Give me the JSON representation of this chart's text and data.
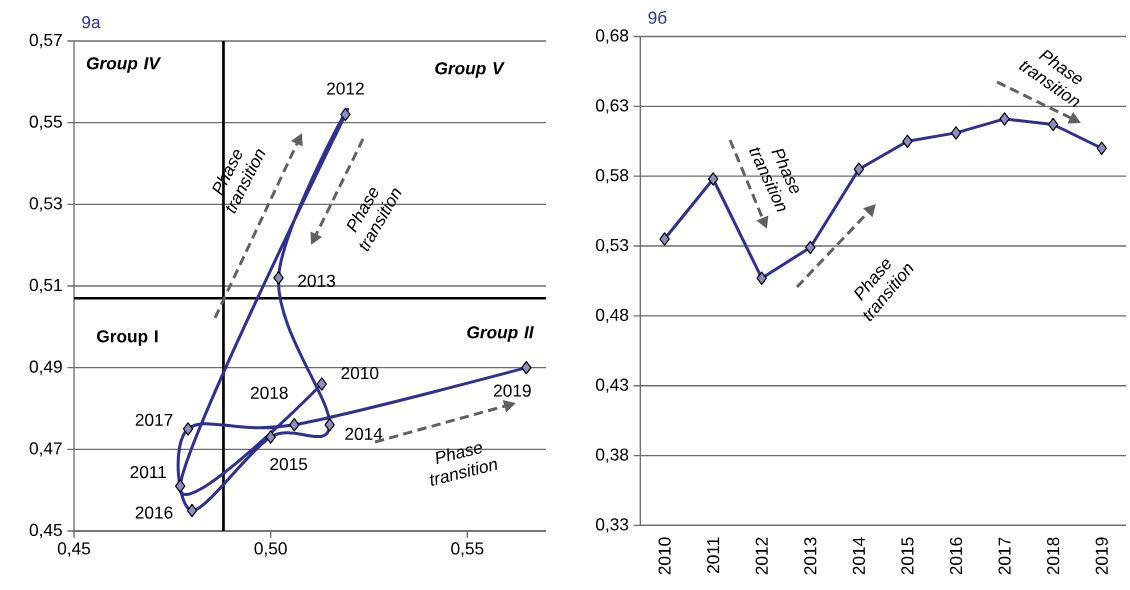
{
  "chart_data": [
    {
      "type": "line",
      "title": "9a",
      "x": [
        0.513,
        0.477,
        0.519,
        0.502,
        0.515,
        0.5,
        0.48,
        0.479,
        0.506,
        0.565
      ],
      "series": [
        {
          "color": "#2e3192",
          "values": [
            0.486,
            0.461,
            0.552,
            0.512,
            0.476,
            0.473,
            0.455,
            0.475,
            0.476,
            0.49
          ]
        }
      ],
      "xlim": [
        0.45,
        0.57
      ],
      "ylim": [
        0.45,
        0.57
      ],
      "xticks": [
        {
          "value": 0.45,
          "label": "0,45"
        },
        {
          "value": 0.5,
          "label": "0,50"
        },
        {
          "value": 0.55,
          "label": "0,55"
        }
      ],
      "yticks": [
        {
          "value": 0.45,
          "label": "0,45"
        },
        {
          "value": 0.47,
          "label": "0,47"
        },
        {
          "value": 0.49,
          "label": "0,49"
        },
        {
          "value": 0.51,
          "label": "0,51"
        },
        {
          "value": 0.53,
          "label": "0,53"
        },
        {
          "value": 0.55,
          "label": "0,55"
        },
        {
          "value": 0.57,
          "label": "0,57"
        }
      ],
      "grid": "y",
      "marker": "diamond",
      "ref_lines": [
        {
          "axis": "x",
          "value": 0.488,
          "color": "#000000"
        },
        {
          "axis": "y",
          "value": 0.507,
          "color": "#000000"
        }
      ],
      "annotations": [
        "Group IV",
        "Group V",
        "Group I",
        "Group II",
        "Phase transition",
        "Phase transition",
        "Phase transition",
        {
          "text": "2010",
          "x": 0.513,
          "y": 0.486
        },
        {
          "text": "2011",
          "x": 0.477,
          "y": 0.461
        },
        {
          "text": "2012",
          "x": 0.519,
          "y": 0.552
        },
        {
          "text": "2013",
          "x": 0.502,
          "y": 0.512
        },
        {
          "text": "2014",
          "x": 0.515,
          "y": 0.476
        },
        {
          "text": "2015",
          "x": 0.5,
          "y": 0.473
        },
        {
          "text": "2016",
          "x": 0.48,
          "y": 0.455
        },
        {
          "text": "2017",
          "x": 0.479,
          "y": 0.475
        },
        {
          "text": "2018",
          "x": 0.506,
          "y": 0.476
        },
        {
          "text": "2019",
          "x": 0.565,
          "y": 0.49
        }
      ]
    },
    {
      "type": "line",
      "title": "9б",
      "categories": [
        "2010",
        "2011",
        "2012",
        "2013",
        "2014",
        "2015",
        "2016",
        "2017",
        "2018",
        "2019"
      ],
      "series": [
        {
          "color": "#2e3192",
          "values": [
            0.535,
            0.578,
            0.507,
            0.529,
            0.585,
            0.605,
            0.611,
            0.621,
            0.617,
            0.6
          ]
        }
      ],
      "ylim": [
        0.33,
        0.68
      ],
      "yticks": [
        {
          "value": 0.33,
          "label": "0,33"
        },
        {
          "value": 0.38,
          "label": "0,38"
        },
        {
          "value": 0.43,
          "label": "0,43"
        },
        {
          "value": 0.48,
          "label": "0,48"
        },
        {
          "value": 0.53,
          "label": "0,53"
        },
        {
          "value": 0.58,
          "label": "0,58"
        },
        {
          "value": 0.63,
          "label": "0,63"
        },
        {
          "value": 0.68,
          "label": "0,68"
        }
      ],
      "grid": "y",
      "marker": "diamond",
      "annotations": [
        "Phase transition",
        "Phase transition",
        "Phase transition"
      ]
    }
  ]
}
